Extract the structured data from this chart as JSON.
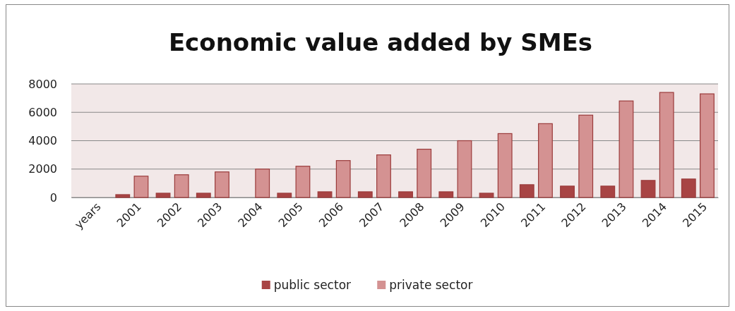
{
  "chart_data": {
    "type": "bar",
    "title": "Economic value added by SMEs",
    "categories": [
      "years",
      "2001",
      "2002",
      "2003",
      "2004",
      "2005",
      "2006",
      "2007",
      "2008",
      "2009",
      "2010",
      "2011",
      "2012",
      "2013",
      "2014",
      "2015"
    ],
    "series": [
      {
        "name": "public sector",
        "color": "#a84444",
        "values": [
          null,
          200,
          300,
          300,
          null,
          300,
          400,
          400,
          400,
          400,
          300,
          900,
          800,
          800,
          1200,
          1300
        ]
      },
      {
        "name": "private sector",
        "color": "#d49292",
        "values": [
          null,
          1500,
          1600,
          1800,
          2000,
          2200,
          2600,
          3000,
          3400,
          4000,
          4500,
          5200,
          5800,
          6800,
          7400,
          7300
        ]
      }
    ],
    "ylim": [
      0,
      8000
    ],
    "yticks": [
      0,
      2000,
      4000,
      6000,
      8000
    ],
    "grid": "y",
    "legend": "bottom"
  }
}
